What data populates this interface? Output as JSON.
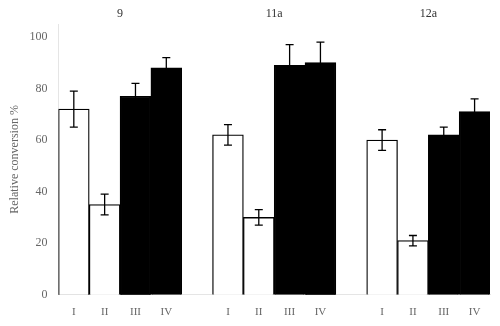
{
  "chart_data": {
    "type": "bar",
    "ylabel": "Relative conversion %",
    "categories": [
      "I",
      "II",
      "III",
      "IV"
    ],
    "colors": [
      "white",
      "white",
      "black",
      "black"
    ],
    "series": [
      {
        "name": "9",
        "values": [
          72,
          35,
          77,
          88
        ],
        "errors": [
          7,
          4,
          5,
          4
        ]
      },
      {
        "name": "11a",
        "values": [
          62,
          30,
          89,
          90
        ],
        "errors": [
          4,
          3,
          8,
          8
        ]
      },
      {
        "name": "12a",
        "values": [
          60,
          21,
          62,
          71
        ],
        "errors": [
          4,
          2,
          3,
          5
        ]
      }
    ],
    "ylim": [
      0,
      105
    ],
    "yticks": [
      0,
      20,
      40,
      60,
      80,
      100
    ],
    "grid": false
  }
}
